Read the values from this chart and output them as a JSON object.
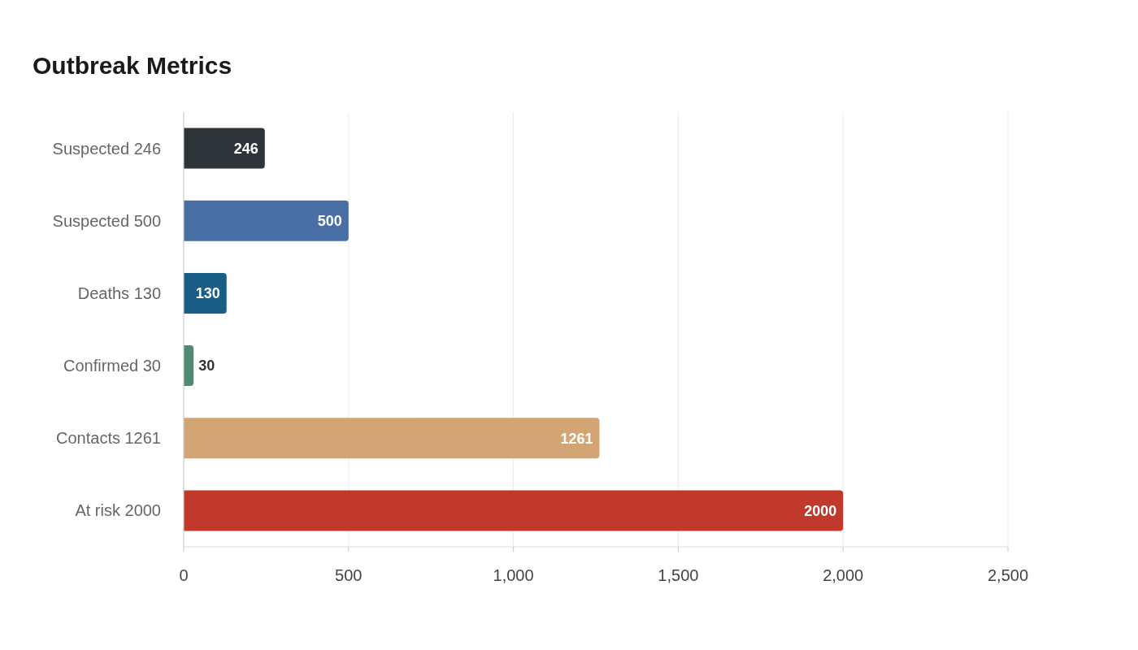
{
  "chart_data": {
    "type": "bar",
    "orientation": "horizontal",
    "title": "Outbreak Metrics",
    "categories": [
      "Suspected 246",
      "Suspected 500",
      "Deaths 130",
      "Confirmed 30",
      "Contacts 1261",
      "At risk 2000"
    ],
    "values": [
      246,
      500,
      130,
      30,
      1261,
      2000
    ],
    "colors": [
      "#2e3538",
      "#4a6fa5",
      "#1a5e86",
      "#4f8a73",
      "#d4a574",
      "#c0392b"
    ],
    "xlim": [
      0,
      2500
    ],
    "xticks": [
      0,
      500,
      {
        "value": 1000,
        "label": "1,000"
      },
      {
        "value": 1500,
        "label": "1,500"
      },
      {
        "value": 2000,
        "label": "2,000"
      },
      {
        "value": 2500,
        "label": "2,500"
      }
    ],
    "grid": "x",
    "data_labels": true
  }
}
